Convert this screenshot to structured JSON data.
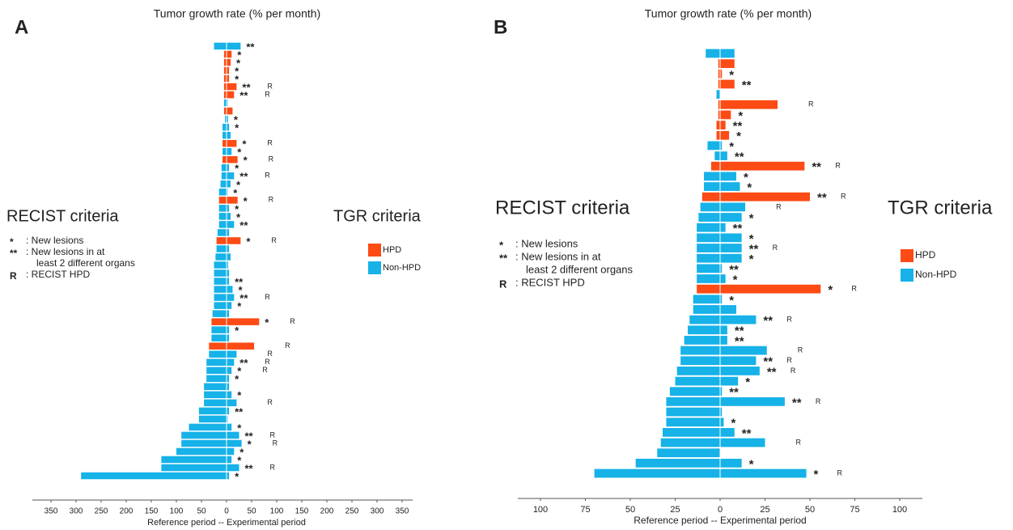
{
  "chart_data": [
    {
      "type": "diverging_bar",
      "panel": "A",
      "title": "Tumor growth rate (% per month)",
      "x_label": "Reference period  --  Experimental period",
      "xlim": [
        -350,
        350
      ],
      "xticks": [
        {
          "value": -350,
          "label": "350"
        },
        {
          "value": -300,
          "label": "300"
        },
        {
          "value": -250,
          "label": "250"
        },
        {
          "value": -200,
          "label": "200"
        },
        {
          "value": -150,
          "label": "150"
        },
        {
          "value": -100,
          "label": "100"
        },
        {
          "value": -50,
          "label": "50"
        },
        0,
        50,
        100,
        150,
        200,
        250,
        300,
        350
      ],
      "reference_values": [
        -25,
        -5,
        -5,
        -5,
        -5,
        -5,
        -5,
        -5,
        -5,
        -3,
        -8,
        -8,
        -8,
        -8,
        -8,
        -10,
        -10,
        -12,
        -15,
        -15,
        -15,
        -15,
        -15,
        -18,
        -20,
        -20,
        -22,
        -25,
        -25,
        -25,
        -25,
        -25,
        -25,
        -28,
        -30,
        -30,
        -30,
        -35,
        -35,
        -40,
        -40,
        -40,
        -45,
        -45,
        -45,
        -55,
        -55,
        -75,
        -90,
        -90,
        -100,
        -130,
        -130,
        -290
      ],
      "experimental_values": [
        28,
        10,
        8,
        5,
        5,
        20,
        15,
        2,
        12,
        3,
        5,
        8,
        20,
        10,
        22,
        5,
        15,
        8,
        2,
        22,
        5,
        8,
        15,
        5,
        28,
        5,
        8,
        3,
        5,
        5,
        12,
        15,
        10,
        5,
        65,
        5,
        5,
        55,
        20,
        15,
        10,
        5,
        5,
        10,
        20,
        5,
        2,
        10,
        25,
        30,
        15,
        10,
        25,
        5
      ],
      "hpd": [
        false,
        true,
        true,
        true,
        true,
        true,
        true,
        false,
        true,
        false,
        false,
        false,
        true,
        false,
        true,
        false,
        false,
        false,
        false,
        true,
        false,
        false,
        false,
        false,
        true,
        false,
        false,
        false,
        false,
        false,
        false,
        false,
        false,
        false,
        true,
        false,
        false,
        true,
        false,
        false,
        false,
        false,
        false,
        false,
        false,
        false,
        false,
        false,
        false,
        false,
        false,
        false,
        false,
        false
      ],
      "lesions": [
        "**",
        "*",
        "*",
        "*",
        "*",
        "**",
        "**",
        null,
        null,
        "*",
        "*",
        null,
        "*",
        "*",
        "*",
        "*",
        "**",
        "*",
        "*",
        "*",
        "*",
        "*",
        "**",
        null,
        "*",
        null,
        null,
        null,
        null,
        "**",
        "*",
        "**",
        "*",
        null,
        "*",
        "*",
        null,
        null,
        null,
        "**",
        "*",
        "*",
        null,
        "*",
        null,
        "**",
        null,
        "*",
        "**",
        "*",
        "*",
        "*",
        "**",
        "*"
      ],
      "recist_hpd": [
        null,
        null,
        null,
        null,
        null,
        "R",
        "R",
        null,
        null,
        null,
        null,
        null,
        "R",
        null,
        "R",
        null,
        "R",
        null,
        null,
        "R",
        null,
        null,
        null,
        null,
        "R",
        null,
        null,
        null,
        null,
        null,
        null,
        "R",
        null,
        null,
        "R",
        null,
        null,
        "R",
        "R",
        "R",
        "R",
        null,
        null,
        null,
        "R",
        null,
        null,
        null,
        "R",
        "R",
        null,
        null,
        "R",
        null
      ],
      "key": {
        "title": "RECIST criteria",
        "items": [
          {
            "symbol": "*",
            "text": [
              ": New lesions"
            ]
          },
          {
            "symbol": "**",
            "text": [
              ": New lesions in at",
              "least 2 different organs"
            ]
          },
          {
            "symbol": "R",
            "text": [
              ": RECIST HPD"
            ]
          }
        ]
      },
      "legend_title": "TGR criteria",
      "legend": [
        {
          "name": "HPD",
          "color": "#fc4b14"
        },
        {
          "name": "Non-HPD",
          "color": "#16b2e8"
        }
      ]
    },
    {
      "type": "diverging_bar",
      "panel": "B",
      "title": "Tumor growth rate (% per month)",
      "x_label": "Reference period  --  Experimental period",
      "xlim": [
        -100,
        100
      ],
      "xticks": [
        {
          "value": -100,
          "label": "100"
        },
        {
          "value": -75,
          "label": "75"
        },
        {
          "value": -50,
          "label": "50"
        },
        {
          "value": -25,
          "label": "25"
        },
        0,
        25,
        50,
        75,
        100
      ],
      "reference_values": [
        -8,
        -1,
        -1,
        -1,
        -2,
        -1,
        -1,
        -2,
        -2,
        -7,
        -3,
        -5,
        -9,
        -9,
        -10,
        -11,
        -12,
        -13,
        -13,
        -13,
        -13,
        -13,
        -13,
        -13,
        -15,
        -15,
        -17,
        -18,
        -20,
        -22,
        -22,
        -24,
        -25,
        -28,
        -30,
        -30,
        -30,
        -32,
        -33,
        -35,
        -47,
        -70
      ],
      "experimental_values": [
        8,
        8,
        1,
        8,
        0,
        32,
        6,
        3,
        5,
        1,
        4,
        47,
        9,
        11,
        50,
        14,
        12,
        3,
        12,
        12,
        12,
        1,
        3,
        56,
        1,
        9,
        20,
        4,
        4,
        26,
        20,
        22,
        10,
        1,
        36,
        1,
        2,
        8,
        25,
        0,
        12,
        48
      ],
      "hpd": [
        false,
        true,
        true,
        true,
        false,
        true,
        true,
        true,
        true,
        false,
        false,
        true,
        false,
        false,
        true,
        false,
        false,
        false,
        false,
        false,
        false,
        false,
        false,
        true,
        false,
        false,
        false,
        false,
        false,
        false,
        false,
        false,
        false,
        false,
        false,
        false,
        false,
        false,
        false,
        false,
        false,
        false
      ],
      "lesions": [
        null,
        null,
        "*",
        "**",
        null,
        null,
        "*",
        "**",
        "*",
        "*",
        "**",
        "**",
        "*",
        "*",
        "**",
        null,
        "*",
        "**",
        "*",
        "**",
        "*",
        "**",
        "*",
        "*",
        "*",
        null,
        "**",
        "**",
        "**",
        null,
        "**",
        "**",
        "*",
        "**",
        "**",
        null,
        "*",
        "**",
        null,
        null,
        "*",
        "*"
      ],
      "recist_hpd": [
        null,
        null,
        null,
        null,
        null,
        "R",
        null,
        null,
        null,
        null,
        null,
        "R",
        null,
        null,
        "R",
        "R",
        null,
        null,
        null,
        "R",
        null,
        null,
        null,
        "R",
        null,
        null,
        "R",
        null,
        null,
        "R",
        "R",
        "R",
        null,
        null,
        "R",
        null,
        null,
        null,
        "R",
        null,
        null,
        "R"
      ],
      "key": {
        "title": "RECIST criteria",
        "items": [
          {
            "symbol": "*",
            "text": [
              ": New lesions"
            ]
          },
          {
            "symbol": "**",
            "text": [
              ": New lesions in at",
              "least 2 different organs"
            ]
          },
          {
            "symbol": "R",
            "text": [
              ": RECIST HPD"
            ]
          }
        ]
      },
      "legend_title": "TGR criteria",
      "legend": [
        {
          "name": "HPD",
          "color": "#fc4b14"
        },
        {
          "name": "Non-HPD",
          "color": "#16b2e8"
        }
      ]
    }
  ]
}
